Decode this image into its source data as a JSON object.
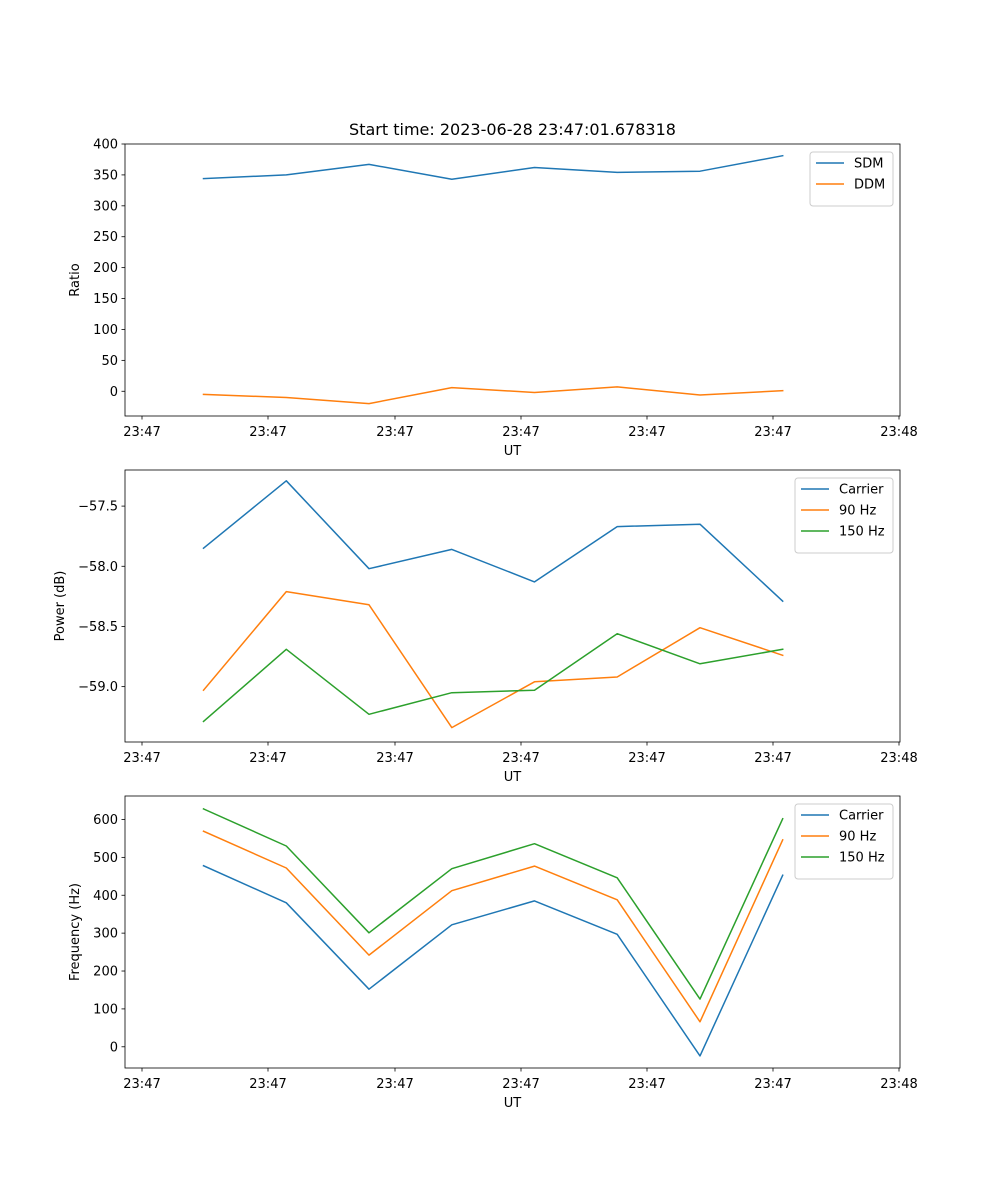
{
  "title": "Start time: 2023-06-28 23:47:01.678318",
  "chart_data": [
    {
      "type": "line",
      "title": "Start time: 2023-06-28 23:47:01.678318",
      "xlabel": "UT",
      "ylabel": "Ratio",
      "x_tick_labels": [
        "23:47",
        "23:47",
        "23:47",
        "23:47",
        "23:47",
        "23:47",
        "23:48"
      ],
      "y_ticks": [
        0,
        50,
        100,
        150,
        200,
        250,
        300,
        350,
        400
      ],
      "y_tick_labels": [
        "0",
        "50",
        "100",
        "150",
        "200",
        "250",
        "300",
        "350",
        "400"
      ],
      "ylim": [
        -40,
        400
      ],
      "legend": "top-right",
      "grid": false,
      "series": [
        {
          "name": "SDM",
          "color": "#1f77b4",
          "values": [
            344,
            350,
            367,
            343,
            362,
            354,
            356,
            381
          ]
        },
        {
          "name": "DDM",
          "color": "#ff7f0e",
          "values": [
            -5,
            -10,
            -20,
            6,
            -2,
            7,
            -6,
            1
          ]
        }
      ]
    },
    {
      "type": "line",
      "xlabel": "UT",
      "ylabel": "Power (dB)",
      "x_tick_labels": [
        "23:47",
        "23:47",
        "23:47",
        "23:47",
        "23:47",
        "23:47",
        "23:48"
      ],
      "y_ticks": [
        -59.0,
        -58.5,
        -58.0,
        -57.5
      ],
      "y_tick_labels": [
        "−59.0",
        "−58.5",
        "−58.0",
        "−57.5"
      ],
      "ylim": [
        -59.46,
        -57.2
      ],
      "legend": "top-right",
      "grid": false,
      "series": [
        {
          "name": "Carrier",
          "color": "#1f77b4",
          "values": [
            -57.85,
            -57.29,
            -58.02,
            -57.86,
            -58.13,
            -57.67,
            -57.65,
            -58.29
          ]
        },
        {
          "name": "90 Hz",
          "color": "#ff7f0e",
          "values": [
            -59.03,
            -58.21,
            -58.32,
            -59.34,
            -58.96,
            -58.92,
            -58.51,
            -58.74
          ]
        },
        {
          "name": "150 Hz",
          "color": "#2ca02c",
          "values": [
            -59.29,
            -58.69,
            -59.23,
            -59.05,
            -59.03,
            -58.56,
            -58.81,
            -58.69
          ]
        }
      ]
    },
    {
      "type": "line",
      "xlabel": "UT",
      "ylabel": "Frequency (Hz)",
      "x_tick_labels": [
        "23:47",
        "23:47",
        "23:47",
        "23:47",
        "23:47",
        "23:47",
        "23:48"
      ],
      "y_ticks": [
        0,
        100,
        200,
        300,
        400,
        500,
        600
      ],
      "y_tick_labels": [
        "0",
        "100",
        "200",
        "300",
        "400",
        "500",
        "600"
      ],
      "ylim": [
        -56,
        662
      ],
      "legend": "top-right",
      "grid": false,
      "series": [
        {
          "name": "Carrier",
          "color": "#1f77b4",
          "values": [
            478,
            380,
            152,
            322,
            385,
            297,
            -24,
            453
          ]
        },
        {
          "name": "90 Hz",
          "color": "#ff7f0e",
          "values": [
            569,
            472,
            242,
            412,
            477,
            388,
            66,
            546
          ]
        },
        {
          "name": "150 Hz",
          "color": "#2ca02c",
          "values": [
            628,
            530,
            301,
            470,
            536,
            446,
            126,
            602
          ]
        }
      ]
    }
  ]
}
